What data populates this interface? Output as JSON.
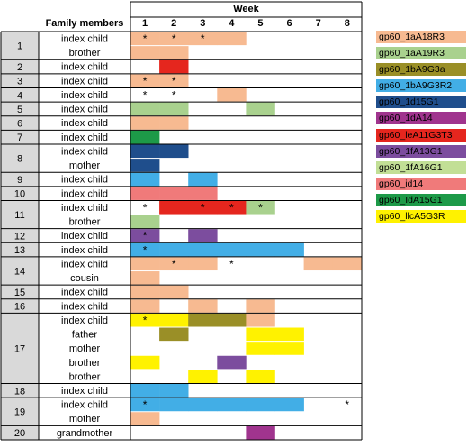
{
  "header": {
    "family_members_label": "Family members",
    "week_label": "Week",
    "weeks": [
      "1",
      "2",
      "3",
      "4",
      "5",
      "6",
      "7",
      "8"
    ]
  },
  "strains": [
    {
      "name": "gp60_1aA18R3",
      "color": "#F7BA91"
    },
    {
      "name": "gp60_1aA19R3",
      "color": "#A9D18E"
    },
    {
      "name": "gp60_1bA9G3a",
      "color": "#9A8F27"
    },
    {
      "name": "gp60_1bA9G3R2",
      "color": "#42AEE6"
    },
    {
      "name": "gp60_1d15G1",
      "color": "#1F4E8C"
    },
    {
      "name": "gp60_1dA14",
      "color": "#A0348E"
    },
    {
      "name": "gp60_leA11G3T3",
      "color": "#E5261E"
    },
    {
      "name": "gp60_1fA13G1",
      "color": "#7C4D9E"
    },
    {
      "name": "gp60_1fA16G1",
      "color": "#C2DF96"
    },
    {
      "name": "gp60_id14",
      "color": "#F07A7A"
    },
    {
      "name": "gp60_IdA15G1",
      "color": "#1D9A48"
    },
    {
      "name": "gp60_llcA5G3R",
      "color": "#FFF200"
    }
  ],
  "families": [
    {
      "id": "1",
      "members": [
        {
          "name": "index child",
          "cells": [
            [
              1,
              0
            ],
            [
              2,
              0
            ],
            [
              3,
              0
            ],
            [
              4,
              0
            ]
          ],
          "stars": [
            1,
            2,
            3
          ]
        },
        {
          "name": "brother",
          "cells": [
            [
              1,
              0
            ],
            [
              2,
              0
            ]
          ],
          "stars": []
        }
      ]
    },
    {
      "id": "2",
      "members": [
        {
          "name": "index child",
          "cells": [
            [
              2,
              6
            ]
          ],
          "stars": []
        }
      ]
    },
    {
      "id": "3",
      "members": [
        {
          "name": "index child",
          "cells": [
            [
              1,
              0
            ],
            [
              2,
              0
            ]
          ],
          "stars": [
            1,
            2
          ]
        }
      ]
    },
    {
      "id": "4",
      "members": [
        {
          "name": "index child",
          "cells": [
            [
              4,
              0
            ]
          ],
          "stars": [
            1,
            2
          ]
        }
      ]
    },
    {
      "id": "5",
      "members": [
        {
          "name": "index child",
          "cells": [
            [
              1,
              1
            ],
            [
              2,
              1
            ],
            [
              5,
              1
            ]
          ],
          "stars": []
        }
      ]
    },
    {
      "id": "6",
      "members": [
        {
          "name": "index child",
          "cells": [
            [
              1,
              0
            ],
            [
              2,
              0
            ]
          ],
          "stars": []
        }
      ]
    },
    {
      "id": "7",
      "members": [
        {
          "name": "index child",
          "cells": [
            [
              1,
              10
            ]
          ],
          "stars": []
        }
      ]
    },
    {
      "id": "8",
      "members": [
        {
          "name": "index child",
          "cells": [
            [
              1,
              4
            ],
            [
              2,
              4
            ]
          ],
          "stars": []
        },
        {
          "name": "mother",
          "cells": [
            [
              1,
              4
            ]
          ],
          "stars": []
        }
      ]
    },
    {
      "id": "9",
      "members": [
        {
          "name": "index child",
          "cells": [
            [
              1,
              3
            ],
            [
              3,
              3
            ]
          ],
          "stars": []
        }
      ]
    },
    {
      "id": "10",
      "members": [
        {
          "name": "index child",
          "cells": [
            [
              1,
              9
            ],
            [
              2,
              9
            ],
            [
              3,
              9
            ]
          ],
          "stars": []
        }
      ]
    },
    {
      "id": "11",
      "members": [
        {
          "name": "index child",
          "cells": [
            [
              2,
              6
            ],
            [
              3,
              6
            ],
            [
              4,
              6
            ],
            [
              5,
              1
            ]
          ],
          "stars": [
            1,
            3,
            4,
            5
          ]
        },
        {
          "name": "brother",
          "cells": [
            [
              1,
              1
            ]
          ],
          "stars": []
        }
      ]
    },
    {
      "id": "12",
      "members": [
        {
          "name": "index child",
          "cells": [
            [
              1,
              7
            ],
            [
              3,
              7
            ]
          ],
          "stars": [
            1
          ]
        }
      ]
    },
    {
      "id": "13",
      "members": [
        {
          "name": "index child",
          "cells": [
            [
              1,
              3
            ],
            [
              2,
              3
            ],
            [
              3,
              3
            ],
            [
              4,
              3
            ],
            [
              5,
              3
            ],
            [
              6,
              3
            ]
          ],
          "stars": [
            1
          ]
        }
      ]
    },
    {
      "id": "14",
      "members": [
        {
          "name": "index child",
          "cells": [
            [
              1,
              0
            ],
            [
              2,
              0
            ],
            [
              3,
              0
            ],
            [
              7,
              0
            ],
            [
              8,
              0
            ]
          ],
          "stars": [
            2,
            4
          ]
        },
        {
          "name": "cousin",
          "cells": [
            [
              1,
              0
            ]
          ],
          "stars": []
        }
      ]
    },
    {
      "id": "15",
      "members": [
        {
          "name": "index child",
          "cells": [
            [
              1,
              0
            ],
            [
              2,
              0
            ]
          ],
          "stars": []
        }
      ]
    },
    {
      "id": "16",
      "members": [
        {
          "name": "index child",
          "cells": [
            [
              1,
              0
            ],
            [
              3,
              0
            ],
            [
              5,
              0
            ]
          ],
          "stars": []
        }
      ]
    },
    {
      "id": "17",
      "members": [
        {
          "name": "index child",
          "cells": [
            [
              1,
              11
            ],
            [
              2,
              11
            ],
            [
              3,
              2
            ],
            [
              4,
              2
            ],
            [
              5,
              0
            ]
          ],
          "stars": [
            1
          ]
        },
        {
          "name": "father",
          "cells": [
            [
              2,
              2
            ],
            [
              5,
              11
            ],
            [
              6,
              11
            ]
          ],
          "stars": []
        },
        {
          "name": "mother",
          "cells": [
            [
              5,
              11
            ],
            [
              6,
              11
            ]
          ],
          "stars": []
        },
        {
          "name": "brother",
          "cells": [
            [
              1,
              11
            ],
            [
              4,
              7
            ]
          ],
          "stars": []
        },
        {
          "name": "brother",
          "cells": [
            [
              3,
              11
            ],
            [
              5,
              11
            ]
          ],
          "stars": []
        }
      ]
    },
    {
      "id": "18",
      "members": [
        {
          "name": "index child",
          "cells": [
            [
              1,
              3
            ],
            [
              2,
              3
            ]
          ],
          "stars": []
        }
      ]
    },
    {
      "id": "19",
      "members": [
        {
          "name": "index child",
          "cells": [
            [
              1,
              3
            ],
            [
              2,
              3
            ],
            [
              3,
              3
            ],
            [
              4,
              3
            ],
            [
              5,
              3
            ],
            [
              6,
              3
            ]
          ],
          "stars": [
            1,
            8
          ]
        },
        {
          "name": "mother",
          "cells": [
            [
              1,
              0
            ]
          ],
          "stars": []
        }
      ]
    },
    {
      "id": "20",
      "members": [
        {
          "name": "grandmother",
          "cells": [
            [
              5,
              5
            ]
          ],
          "stars": []
        }
      ]
    }
  ]
}
